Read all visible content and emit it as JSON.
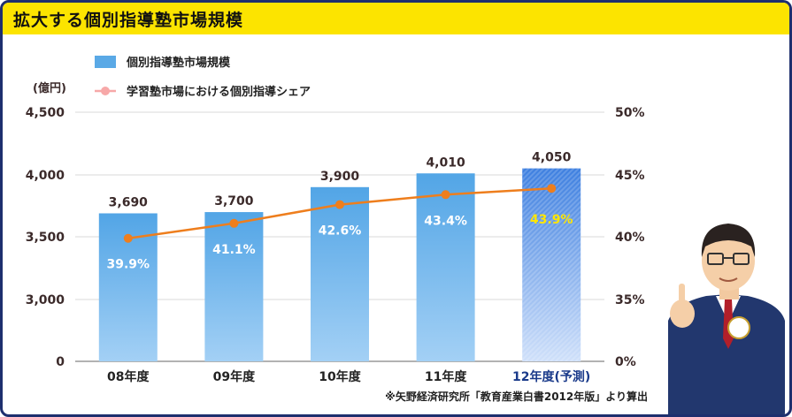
{
  "title": "拡大する個別指導塾市場規模",
  "note": "※矢野経済研究所「教育産業白書2012年版」より算出",
  "chart_data": {
    "type": "bar",
    "categories": [
      "08年度",
      "09年度",
      "10年度",
      "11年度",
      "12年度(予測)"
    ],
    "series": [
      {
        "name": "個別指導塾市場規模",
        "type": "bar",
        "axis": "left",
        "values": [
          3690,
          3700,
          3900,
          4010,
          4050
        ],
        "value_labels": [
          "3,690",
          "3,700",
          "3,900",
          "4,010",
          "4,050"
        ]
      },
      {
        "name": "学習塾市場における個別指導シェア",
        "type": "line",
        "axis": "right",
        "values": [
          39.9,
          41.1,
          42.6,
          43.4,
          43.9
        ],
        "value_labels": [
          "39.9%",
          "41.1%",
          "42.6%",
          "43.4%",
          "43.9%"
        ]
      }
    ],
    "left_axis": {
      "unit_label": "(億円)",
      "ticks": [
        0,
        3000,
        3500,
        4000,
        4500
      ],
      "tick_labels": [
        "0",
        "3,000",
        "3,500",
        "4,000",
        "4,500"
      ],
      "broken": true
    },
    "right_axis": {
      "ticks": [
        0,
        35,
        40,
        45,
        50
      ],
      "tick_labels": [
        "0%",
        "35%",
        "40%",
        "45%",
        "50%"
      ],
      "broken": true
    },
    "forecast_index": 4,
    "legend_position": "top-left",
    "colors": {
      "bar": "#5aa9e6",
      "bar_forecast": "#3d7fe0",
      "line": "#ee7e1d",
      "legend_marker": "#f7a8a8",
      "forecast_label": "#1a3a8a",
      "forecast_value": "#ffe600",
      "axis_text": "#3b2a2a"
    }
  }
}
